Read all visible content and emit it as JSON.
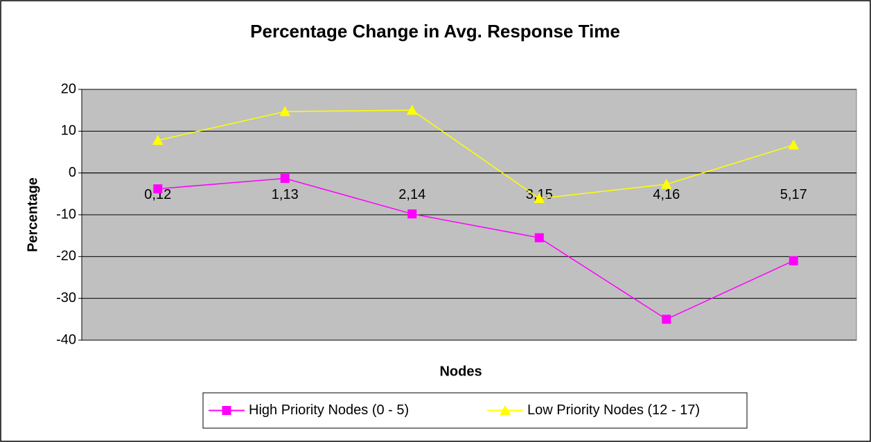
{
  "chart_data": {
    "type": "line",
    "title": "Percentage Change in Avg. Response Time",
    "xlabel": "Nodes",
    "ylabel": "Percentage",
    "categories": [
      "0,12",
      "1,13",
      "2,14",
      "3,15",
      "4,16",
      "5,17"
    ],
    "series": [
      {
        "name": "High Priority Nodes (0 - 5)",
        "color": "#ff00ff",
        "marker": "square",
        "values": [
          -3.8,
          -1.3,
          -9.8,
          -15.5,
          -35,
          -21
        ]
      },
      {
        "name": "Low Priority Nodes (12 - 17)",
        "color": "#ffff00",
        "marker": "triangle",
        "values": [
          7.8,
          14.7,
          15,
          -6.1,
          -2.7,
          6.7
        ]
      }
    ],
    "ylim": [
      -40,
      20
    ],
    "yticks": [
      -40,
      -30,
      -20,
      -10,
      0,
      10,
      20
    ],
    "grid": true,
    "legend": "bottom"
  }
}
